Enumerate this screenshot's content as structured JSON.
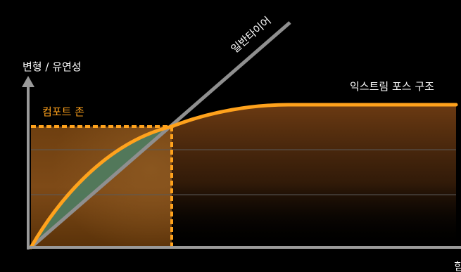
{
  "labels": {
    "y_axis": "변형 / 유연성",
    "x_axis": "힘",
    "general_tire": "일반타이어",
    "extreme_form": "익스트림 포스 구조",
    "comfort_zone": "컴포트 존"
  },
  "colors": {
    "background": "#000000",
    "axis": "#9a9a9a",
    "general_line": "#8f8f8f",
    "orange_curve": "#ffa21c",
    "comfort_fill": "#7a4714",
    "comfort_dashes": "#ffa21c",
    "green_lens": "#4f7a5e",
    "gridline": "#5a5a5a",
    "text": "#ffffff",
    "comfort_text": "#ffa21c"
  }
}
